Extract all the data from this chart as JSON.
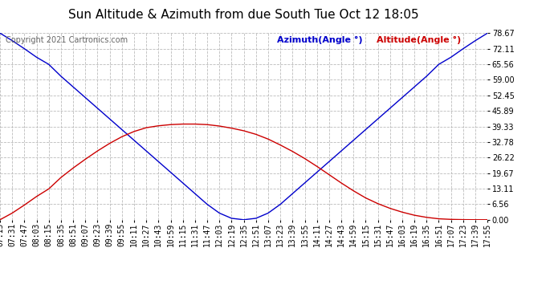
{
  "title": "Sun Altitude & Azimuth from due South Tue Oct 12 18:05",
  "copyright": "Copyright 2021 Cartronics.com",
  "legend_azimuth": "Azimuth(Angle °)",
  "legend_altitude": "Altitude(Angle °)",
  "yticks": [
    0.0,
    6.56,
    13.11,
    19.67,
    26.22,
    32.78,
    39.33,
    45.89,
    52.45,
    59.0,
    65.56,
    72.11,
    78.67
  ],
  "ymax": 78.67,
  "ymin": 0.0,
  "color_azimuth": "#0000cc",
  "color_altitude": "#cc0000",
  "background_color": "#ffffff",
  "grid_color": "#bbbbbb",
  "title_fontsize": 11,
  "tick_fontsize": 7,
  "legend_fontsize": 8,
  "copyright_fontsize": 7,
  "x_times": [
    "07:15",
    "07:31",
    "07:47",
    "08:03",
    "08:15",
    "08:35",
    "08:51",
    "09:07",
    "09:23",
    "09:39",
    "09:55",
    "10:11",
    "10:27",
    "10:43",
    "10:59",
    "11:15",
    "11:31",
    "11:47",
    "12:03",
    "12:19",
    "12:35",
    "12:51",
    "13:07",
    "13:23",
    "13:39",
    "13:55",
    "14:11",
    "14:27",
    "14:43",
    "14:59",
    "15:15",
    "15:31",
    "15:47",
    "16:03",
    "16:19",
    "16:35",
    "16:51",
    "17:07",
    "17:23",
    "17:39",
    "17:55"
  ],
  "azimuth_values": [
    78.67,
    75.5,
    72.1,
    68.5,
    65.5,
    60.5,
    56.0,
    51.5,
    47.0,
    42.5,
    38.0,
    33.5,
    29.0,
    24.5,
    20.0,
    15.5,
    11.0,
    6.5,
    2.8,
    0.6,
    0.0,
    0.6,
    2.8,
    6.5,
    11.0,
    15.5,
    20.0,
    24.5,
    29.0,
    33.5,
    38.0,
    42.5,
    47.0,
    51.5,
    56.0,
    60.5,
    65.5,
    68.5,
    72.1,
    75.5,
    78.67
  ],
  "altitude_values": [
    0.0,
    2.8,
    6.2,
    9.8,
    13.0,
    17.8,
    21.8,
    25.5,
    29.0,
    32.2,
    35.0,
    37.2,
    38.8,
    39.6,
    40.1,
    40.33,
    40.33,
    40.1,
    39.5,
    38.6,
    37.5,
    36.0,
    34.0,
    31.5,
    28.8,
    25.8,
    22.5,
    19.0,
    15.5,
    12.2,
    9.2,
    6.8,
    4.8,
    3.2,
    1.9,
    1.0,
    0.4,
    0.15,
    0.05,
    0.01,
    0.0
  ]
}
